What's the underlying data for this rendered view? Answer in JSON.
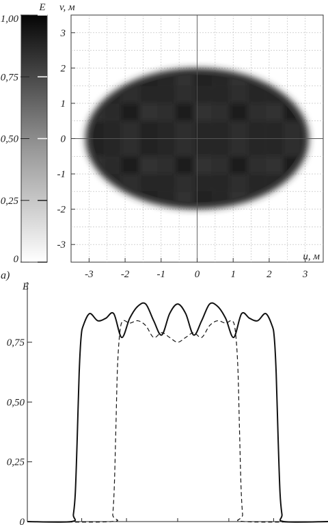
{
  "chart_data": [
    {
      "type": "heatmap",
      "panel_label": "a)",
      "colorbar": {
        "label": "E",
        "ticks": [
          "0",
          "0,25",
          "0,50",
          "0,75",
          "1,00"
        ],
        "tick_values": [
          0,
          0.25,
          0.5,
          0.75,
          1.0
        ],
        "range": [
          0,
          1
        ],
        "colors": {
          "low": "#ffffff",
          "high": "#050505"
        }
      },
      "xlabel": "u, м",
      "ylabel": "v, м",
      "x_ticks": [
        "-3",
        "-2",
        "-1",
        "0",
        "1",
        "2",
        "3"
      ],
      "y_ticks": [
        "3",
        "2",
        "1",
        "0",
        "-1",
        "-2",
        "-3"
      ],
      "xlim": [
        -3.5,
        3.5
      ],
      "ylim": [
        -3.5,
        3.5
      ],
      "grid": true,
      "grid_step": 0.5,
      "spot": {
        "center": [
          0,
          0
        ],
        "semi_axis_u": 3.1,
        "semi_axis_v": 2.0,
        "level_mean": 0.84,
        "level_ripple": 0.05
      }
    },
    {
      "type": "line",
      "ylabel": "E",
      "y_ticks": [
        "0",
        "0,25",
        "0,50",
        "0,75"
      ],
      "ylim": [
        0,
        1.05
      ],
      "xlim": [
        -4.7,
        4.7
      ],
      "series": [
        {
          "style": "solid",
          "x": [
            -4.7,
            -3.32,
            -3.26,
            -3.2,
            -3.14,
            -3.08,
            -3.02,
            -2.95,
            -2.75,
            -2.5,
            -2.25,
            -2.0,
            -1.75,
            -1.5,
            -1.25,
            -1.0,
            -0.75,
            -0.5,
            -0.25,
            0.0,
            0.25,
            0.5,
            0.75,
            1.0,
            1.25,
            1.5,
            1.75,
            2.0,
            2.25,
            2.5,
            2.75,
            2.95,
            3.02,
            3.08,
            3.14,
            3.2,
            3.26,
            3.32,
            4.7
          ],
          "y": [
            0.0,
            0.0,
            0.03,
            0.12,
            0.35,
            0.62,
            0.77,
            0.82,
            0.87,
            0.84,
            0.85,
            0.87,
            0.77,
            0.85,
            0.9,
            0.91,
            0.84,
            0.78,
            0.87,
            0.91,
            0.87,
            0.78,
            0.84,
            0.91,
            0.9,
            0.85,
            0.77,
            0.87,
            0.85,
            0.84,
            0.87,
            0.82,
            0.77,
            0.62,
            0.35,
            0.12,
            0.03,
            0.0,
            0.0
          ]
        },
        {
          "style": "dashed",
          "x": [
            -4.7,
            -2.08,
            -2.03,
            -1.98,
            -1.93,
            -1.88,
            -1.8,
            -1.7,
            -1.5,
            -1.25,
            -1.0,
            -0.75,
            -0.5,
            -0.25,
            0.0,
            0.25,
            0.5,
            0.75,
            1.0,
            1.25,
            1.5,
            1.7,
            1.8,
            1.88,
            1.93,
            1.98,
            2.03,
            2.08,
            4.7
          ],
          "y": [
            0.0,
            0.0,
            0.03,
            0.15,
            0.4,
            0.65,
            0.8,
            0.84,
            0.83,
            0.84,
            0.82,
            0.77,
            0.79,
            0.77,
            0.75,
            0.77,
            0.79,
            0.77,
            0.82,
            0.84,
            0.83,
            0.84,
            0.8,
            0.65,
            0.4,
            0.15,
            0.03,
            0.0,
            0.0
          ]
        }
      ]
    }
  ]
}
